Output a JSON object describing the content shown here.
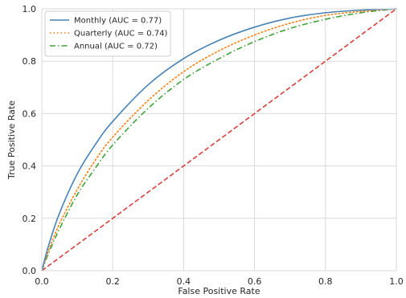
{
  "chart_data": {
    "type": "line",
    "title": "",
    "xlabel": "False Positive Rate",
    "ylabel": "True Positive Rate",
    "xlim": [
      0.0,
      1.0
    ],
    "ylim": [
      0.0,
      1.0
    ],
    "xticks": [
      "0.0",
      "0.2",
      "0.4",
      "0.6",
      "0.8",
      "1.0"
    ],
    "yticks": [
      "0.0",
      "0.2",
      "0.4",
      "0.6",
      "0.8",
      "1.0"
    ],
    "grid": true,
    "legend_position": "top-left",
    "series": [
      {
        "name": "Monthly (AUC = 0.77)",
        "color": "#4682b4",
        "line_style": "solid",
        "x": [
          0.0,
          0.02,
          0.05,
          0.1,
          0.15,
          0.2,
          0.3,
          0.4,
          0.5,
          0.6,
          0.7,
          0.8,
          0.9,
          1.0
        ],
        "y": [
          0.0,
          0.1,
          0.22,
          0.37,
          0.48,
          0.57,
          0.71,
          0.81,
          0.88,
          0.93,
          0.965,
          0.985,
          0.995,
          1.0
        ]
      },
      {
        "name": "Quarterly (AUC = 0.74)",
        "color": "#ff7f0e",
        "line_style": "dotted",
        "x": [
          0.0,
          0.02,
          0.05,
          0.1,
          0.15,
          0.2,
          0.3,
          0.4,
          0.5,
          0.6,
          0.7,
          0.8,
          0.9,
          1.0
        ],
        "y": [
          0.0,
          0.08,
          0.18,
          0.31,
          0.42,
          0.51,
          0.65,
          0.76,
          0.84,
          0.9,
          0.945,
          0.975,
          0.99,
          1.0
        ]
      },
      {
        "name": "Annual (AUC = 0.72)",
        "color": "#3ea33a",
        "line_style": "dashdot",
        "x": [
          0.0,
          0.02,
          0.05,
          0.1,
          0.15,
          0.2,
          0.3,
          0.4,
          0.5,
          0.6,
          0.7,
          0.8,
          0.9,
          1.0
        ],
        "y": [
          0.0,
          0.07,
          0.16,
          0.29,
          0.39,
          0.48,
          0.62,
          0.73,
          0.81,
          0.875,
          0.925,
          0.96,
          0.985,
          1.0
        ]
      },
      {
        "name": "",
        "color": "#d9403a",
        "line_style": "dashed",
        "x": [
          0.0,
          1.0
        ],
        "y": [
          0.0,
          1.0
        ]
      }
    ]
  }
}
